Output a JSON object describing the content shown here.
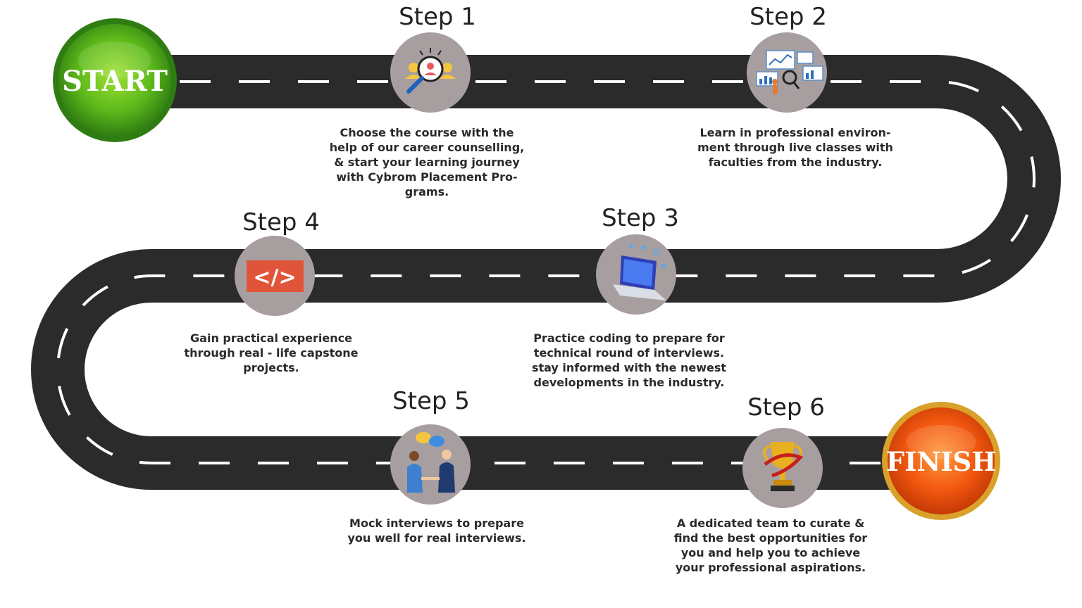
{
  "start_label": "START",
  "finish_label": "FINISH",
  "steps": [
    {
      "title": "Step 1",
      "icon": "search-people-icon",
      "text": "Choose the course with the\nhelp of our career counselling,\n& start your learning journey\nwith Cybrom Placement Pro-\ngrams."
    },
    {
      "title": "Step 2",
      "icon": "analytics-dashboard-icon",
      "text": "Learn in professional environ-\nment through live classes with\nfaculties from the industry."
    },
    {
      "title": "Step 3",
      "icon": "laptop-coding-icon",
      "text": "Practice coding to prepare for\ntechnical round of interviews.\nstay informed with the newest\ndevelopments in the industry."
    },
    {
      "title": "Step 4",
      "icon": "code-tag-icon",
      "text": "Gain practical experience\nthrough real - life capstone\nprojects."
    },
    {
      "title": "Step 5",
      "icon": "interview-handshake-icon",
      "text": "Mock interviews to prepare\nyou well for real interviews."
    },
    {
      "title": "Step 6",
      "icon": "trophy-icon",
      "text": "A dedicated team to curate &\nfind the best opportunities for\nyou and help you to achieve\nyour professional aspirations."
    }
  ],
  "colors": {
    "road": "#2b2b2b",
    "dash": "#ffffff",
    "icon_circle": "#a79f9f",
    "start_green": "#5cb81a",
    "finish_orange": "#f2570f",
    "code_tag": "#e0553a"
  }
}
